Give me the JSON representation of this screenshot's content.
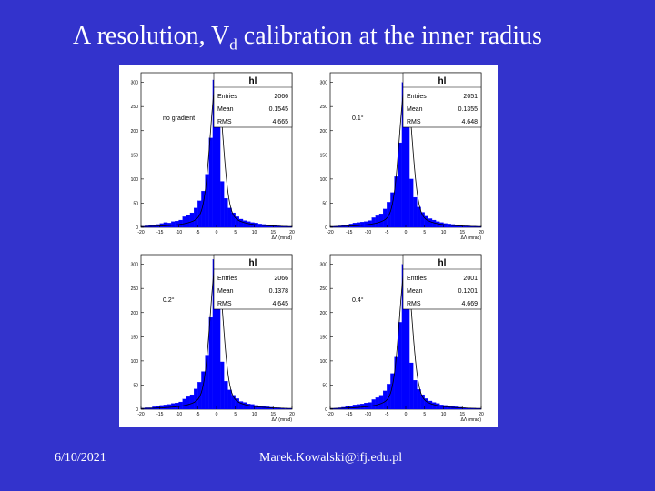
{
  "slide": {
    "title_pre": "Λ resolution, V",
    "title_sub": "d",
    "title_post": " calibration at the inner radius",
    "footer_date": "6/10/2021",
    "footer_email": "Marek.Kowalski@ifj.edu.pl"
  },
  "colors": {
    "background": "#3333cc",
    "bars": "#0000ff",
    "fit_line": "#000000",
    "panel": "#ffffff"
  },
  "chart_data": [
    {
      "type": "bar",
      "histogram_name": "hl",
      "annotation": "no gradient",
      "xlabel": "ΔΛ (mrad)",
      "ylim": [
        0,
        320
      ],
      "xlim": [
        -20,
        20
      ],
      "x_ticks": [
        "-20",
        "-15",
        "-10",
        "-5",
        "0",
        "5",
        "10",
        "15",
        "20"
      ],
      "y_ticks": [
        "0",
        "50",
        "100",
        "150",
        "200",
        "250",
        "300"
      ],
      "stats": {
        "Entries": "2066",
        "Mean": "0.1545",
        "RMS": "4.665"
      },
      "x": [
        -19.5,
        -18.5,
        -17.5,
        -16.5,
        -15.5,
        -14.5,
        -13.5,
        -12.5,
        -11.5,
        -10.5,
        -9.5,
        -8.5,
        -7.5,
        -6.5,
        -5.5,
        -4.5,
        -3.5,
        -2.5,
        -1.5,
        -0.5,
        0.5,
        1.5,
        2.5,
        3.5,
        4.5,
        5.5,
        6.5,
        7.5,
        8.5,
        9.5,
        10.5,
        11.5,
        12.5,
        13.5,
        14.5,
        15.5,
        16.5,
        17.5,
        18.5,
        19.5
      ],
      "values": [
        2,
        3,
        4,
        5,
        6,
        8,
        10,
        9,
        12,
        13,
        15,
        22,
        25,
        30,
        40,
        55,
        75,
        110,
        185,
        305,
        220,
        95,
        60,
        40,
        30,
        22,
        17,
        14,
        12,
        10,
        9,
        7,
        6,
        5,
        4,
        4,
        3,
        2,
        2,
        1
      ]
    },
    {
      "type": "bar",
      "histogram_name": "hl",
      "annotation": "0.1°",
      "xlabel": "ΔΛ (mrad)",
      "ylim": [
        0,
        320
      ],
      "xlim": [
        -20,
        20
      ],
      "x_ticks": [
        "-20",
        "-15",
        "-10",
        "-5",
        "0",
        "5",
        "10",
        "15",
        "20"
      ],
      "y_ticks": [
        "0",
        "50",
        "100",
        "150",
        "200",
        "250",
        "300"
      ],
      "stats": {
        "Entries": "2051",
        "Mean": "0.1355",
        "RMS": "4.648"
      },
      "x": [
        -19.5,
        -18.5,
        -17.5,
        -16.5,
        -15.5,
        -14.5,
        -13.5,
        -12.5,
        -11.5,
        -10.5,
        -9.5,
        -8.5,
        -7.5,
        -6.5,
        -5.5,
        -4.5,
        -3.5,
        -2.5,
        -1.5,
        -0.5,
        0.5,
        1.5,
        2.5,
        3.5,
        4.5,
        5.5,
        6.5,
        7.5,
        8.5,
        9.5,
        10.5,
        11.5,
        12.5,
        13.5,
        14.5,
        15.5,
        16.5,
        17.5,
        18.5,
        19.5
      ],
      "values": [
        1,
        2,
        3,
        4,
        5,
        7,
        9,
        10,
        11,
        12,
        14,
        20,
        24,
        28,
        38,
        52,
        72,
        105,
        175,
        300,
        215,
        100,
        62,
        42,
        31,
        23,
        18,
        15,
        12,
        10,
        8,
        7,
        6,
        5,
        4,
        3,
        3,
        2,
        2,
        1
      ]
    },
    {
      "type": "bar",
      "histogram_name": "hl",
      "annotation": "0.2°",
      "xlabel": "ΔΛ (mrad)",
      "ylim": [
        0,
        320
      ],
      "xlim": [
        -20,
        20
      ],
      "x_ticks": [
        "-20",
        "-15",
        "-10",
        "-5",
        "0",
        "5",
        "10",
        "15",
        "20"
      ],
      "y_ticks": [
        "0",
        "50",
        "100",
        "150",
        "200",
        "250",
        "300"
      ],
      "stats": {
        "Entries": "2066",
        "Mean": "0.1378",
        "RMS": "4.645"
      },
      "x": [
        -19.5,
        -18.5,
        -17.5,
        -16.5,
        -15.5,
        -14.5,
        -13.5,
        -12.5,
        -11.5,
        -10.5,
        -9.5,
        -8.5,
        -7.5,
        -6.5,
        -5.5,
        -4.5,
        -3.5,
        -2.5,
        -1.5,
        -0.5,
        0.5,
        1.5,
        2.5,
        3.5,
        4.5,
        5.5,
        6.5,
        7.5,
        8.5,
        9.5,
        10.5,
        11.5,
        12.5,
        13.5,
        14.5,
        15.5,
        16.5,
        17.5,
        18.5,
        19.5
      ],
      "values": [
        2,
        3,
        3,
        5,
        6,
        8,
        9,
        10,
        12,
        13,
        15,
        21,
        26,
        30,
        42,
        56,
        78,
        112,
        190,
        310,
        225,
        98,
        58,
        40,
        29,
        22,
        16,
        14,
        11,
        10,
        8,
        7,
        6,
        5,
        4,
        3,
        3,
        2,
        1,
        1
      ]
    },
    {
      "type": "bar",
      "histogram_name": "hl",
      "annotation": "0.4°",
      "xlabel": "ΔΛ (mrad)",
      "ylim": [
        0,
        320
      ],
      "xlim": [
        -20,
        20
      ],
      "x_ticks": [
        "-20",
        "-15",
        "-10",
        "-5",
        "0",
        "5",
        "10",
        "15",
        "20"
      ],
      "y_ticks": [
        "0",
        "50",
        "100",
        "150",
        "200",
        "250",
        "300"
      ],
      "stats": {
        "Entries": "2001",
        "Mean": "0.1201",
        "RMS": "4.669"
      },
      "x": [
        -19.5,
        -18.5,
        -17.5,
        -16.5,
        -15.5,
        -14.5,
        -13.5,
        -12.5,
        -11.5,
        -10.5,
        -9.5,
        -8.5,
        -7.5,
        -6.5,
        -5.5,
        -4.5,
        -3.5,
        -2.5,
        -1.5,
        -0.5,
        0.5,
        1.5,
        2.5,
        3.5,
        4.5,
        5.5,
        6.5,
        7.5,
        8.5,
        9.5,
        10.5,
        11.5,
        12.5,
        13.5,
        14.5,
        15.5,
        16.5,
        17.5,
        18.5,
        19.5
      ],
      "values": [
        1,
        2,
        3,
        4,
        6,
        7,
        9,
        10,
        11,
        13,
        14,
        20,
        24,
        29,
        38,
        52,
        74,
        108,
        180,
        300,
        218,
        96,
        60,
        41,
        30,
        22,
        17,
        14,
        12,
        9,
        8,
        7,
        6,
        5,
        4,
        3,
        2,
        2,
        1,
        1
      ]
    }
  ]
}
